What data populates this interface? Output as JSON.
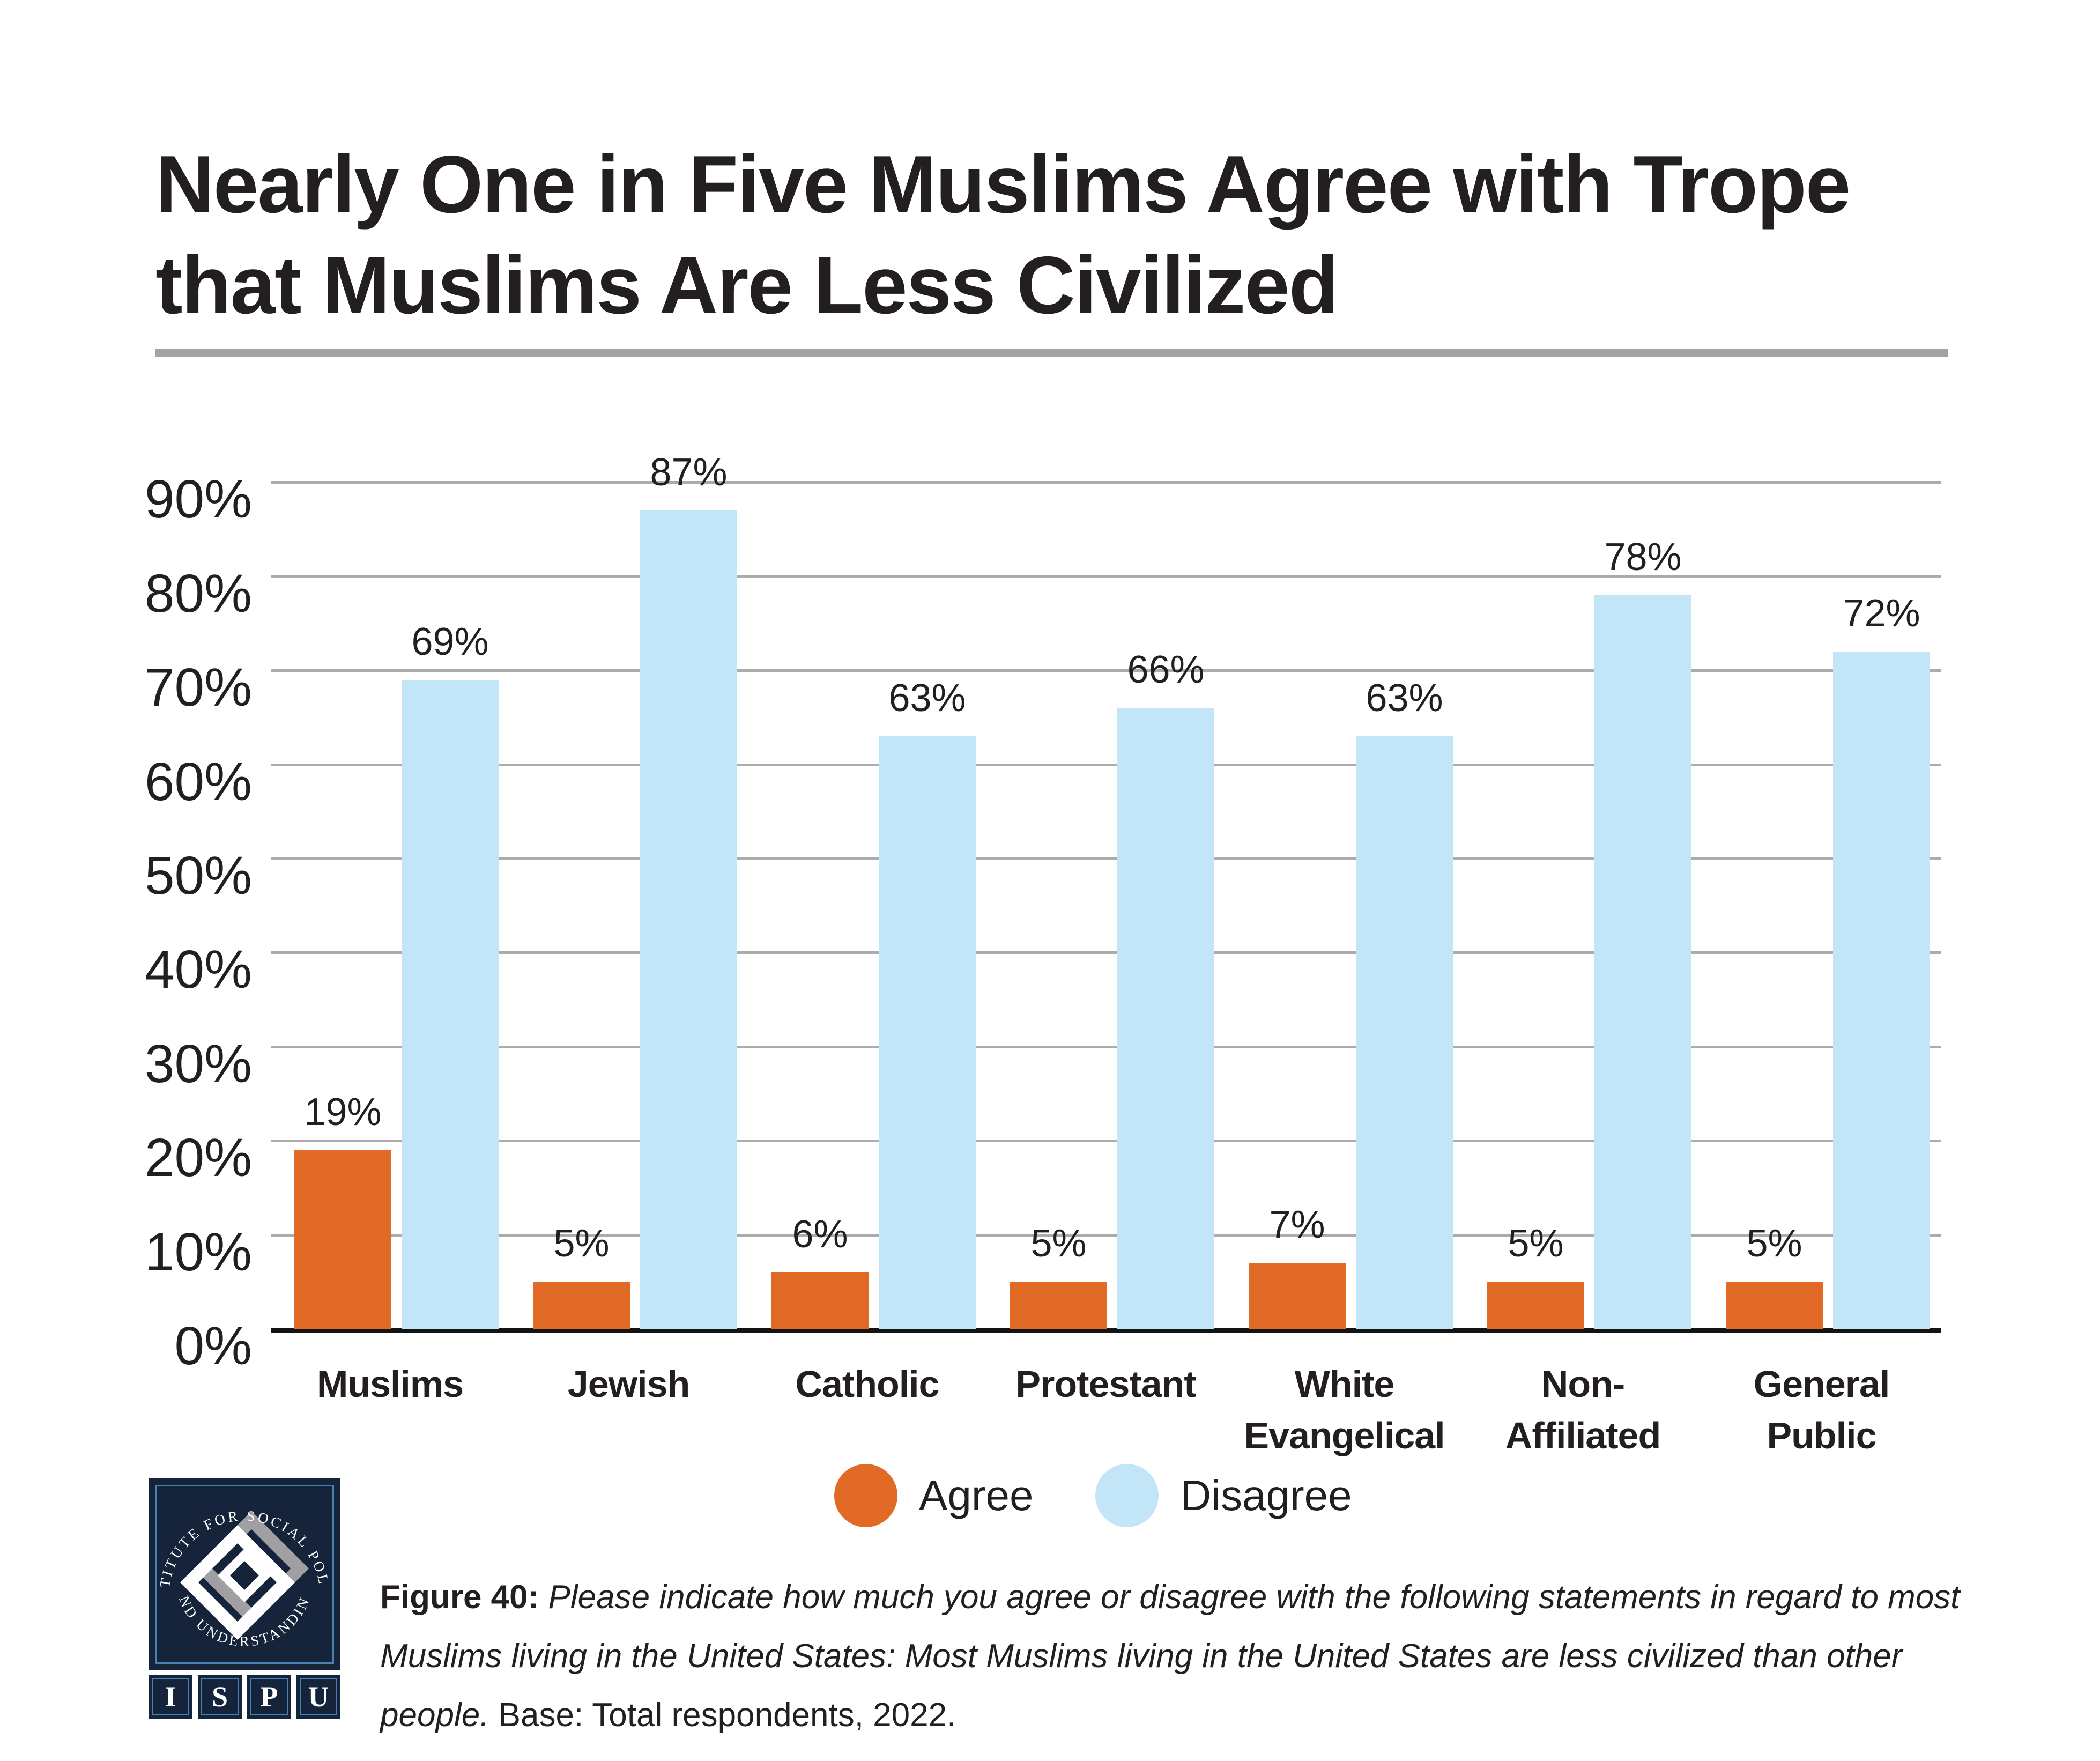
{
  "title": {
    "line1": "Nearly One in Five Muslims Agree with Trope",
    "line2": "that Muslims Are Less Civilized"
  },
  "chart_data": {
    "type": "bar",
    "title": "Nearly One in Five Muslims Agree with Trope that Muslims Are Less Civilized",
    "categories": [
      "Muslims",
      "Jewish",
      "Catholic",
      "Protestant",
      "White Evangelical",
      "Non-Affiliated",
      "General Public"
    ],
    "category_label_lines": [
      [
        "Muslims"
      ],
      [
        "Jewish"
      ],
      [
        "Catholic"
      ],
      [
        "Protestant"
      ],
      [
        "White",
        "Evangelical"
      ],
      [
        "Non-",
        "Affiliated"
      ],
      [
        "General",
        "Public"
      ]
    ],
    "series": [
      {
        "name": "Agree",
        "color": "#E06A26",
        "values": [
          19,
          5,
          6,
          5,
          7,
          5,
          5
        ]
      },
      {
        "name": "Disagree",
        "color": "#C2E5F7",
        "values": [
          69,
          87,
          63,
          66,
          63,
          78,
          72
        ]
      }
    ],
    "value_label_suffix": "%",
    "xlabel": "",
    "ylabel": "",
    "yaxis": {
      "ticks": [
        0,
        10,
        20,
        30,
        40,
        50,
        60,
        70,
        80,
        90
      ],
      "tick_labels": [
        "0%",
        "10%",
        "20%",
        "30%",
        "40%",
        "50%",
        "60%",
        "70%",
        "80%",
        "90%"
      ],
      "ylim": [
        0,
        100
      ],
      "grid": true,
      "gridline_color": "#ABABAB"
    },
    "legend_position": "bottom"
  },
  "legend": {
    "items": [
      {
        "label": "Agree",
        "color": "#E06A26"
      },
      {
        "label": "Disagree",
        "color": "#C2E5F7"
      }
    ]
  },
  "caption": {
    "figure_label": "Figure 40:",
    "question": "Please indicate how much you agree or disagree with the following statements in regard to most Muslims living in the United States: Most Muslims living in the United States are less civilized than other people.",
    "base_note": "Base: Total respondents, 2022."
  },
  "logo": {
    "circle_text_top": "INSTITUTE FOR SOCIAL POLICY",
    "circle_text_bottom": "AND UNDERSTANDING",
    "letters": [
      "I",
      "S",
      "P",
      "U"
    ]
  },
  "colors": {
    "agree_orange": "#E06A26",
    "disagree_blue": "#C2E5F7",
    "gridline_gray": "#ABABAB",
    "title_rule_gray": "#A3A3A3",
    "text_black": "#231F20",
    "logo_navy": "#15233B",
    "logo_border_blue": "#4B80B4",
    "logo_gray": "#A0A0A2"
  }
}
